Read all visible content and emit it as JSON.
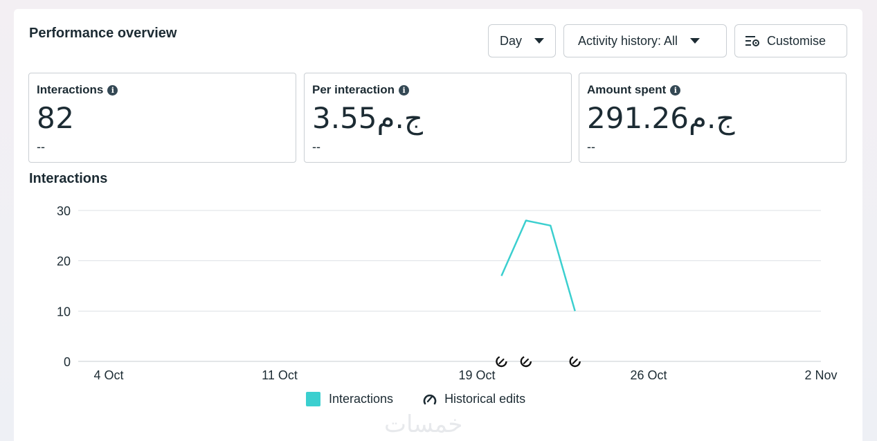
{
  "header": {
    "title": "Performance overview",
    "period_select": "Day",
    "activity_select": "Activity history: All",
    "customise_label": "Customise"
  },
  "metrics": [
    {
      "label": "Interactions",
      "value": "82",
      "delta": "--"
    },
    {
      "label": "Per interaction",
      "value": "3.55ج.م",
      "delta": "--"
    },
    {
      "label": "Amount spent",
      "value": "291.26ج.م",
      "delta": "--"
    }
  ],
  "chart_section": {
    "title": "Interactions"
  },
  "chart_data": {
    "type": "line",
    "title": "Interactions",
    "x_range": [
      "2024-10-04",
      "2024-11-02"
    ],
    "x_ticks": [
      "4 Oct",
      "11 Oct",
      "19 Oct",
      "26 Oct",
      "2 Nov"
    ],
    "y_ticks": [
      "0",
      "10",
      "20",
      "30"
    ],
    "ylim": [
      0,
      30
    ],
    "grid": true,
    "legend_position": "bottom",
    "series": [
      {
        "name": "Interactions",
        "color": "#3bcfcf",
        "x": [
          "2024-10-20",
          "2024-10-21",
          "2024-10-22",
          "2024-10-23"
        ],
        "values": [
          17,
          28,
          27,
          10
        ]
      }
    ],
    "historical_edits": [
      "2024-10-20",
      "2024-10-21",
      "2024-10-23"
    ]
  },
  "legend": {
    "interactions_label": "Interactions",
    "historical_edits_label": "Historical edits"
  },
  "watermark": "خمسات"
}
